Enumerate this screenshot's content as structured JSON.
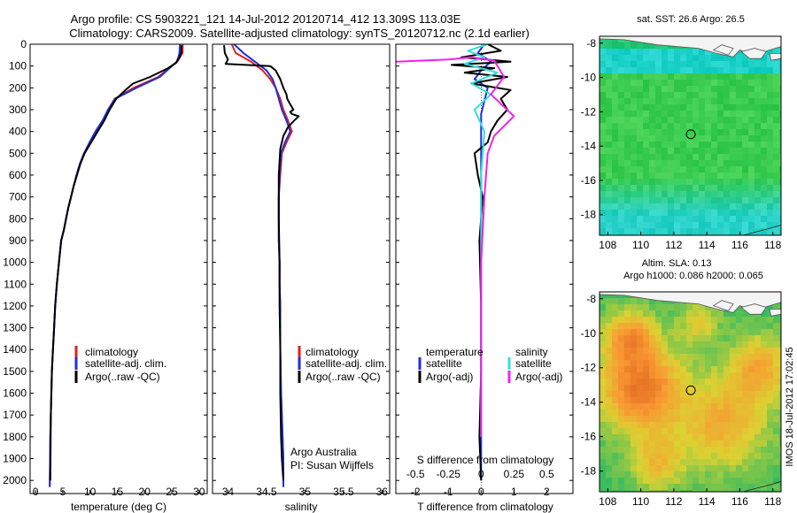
{
  "header": {
    "line1": "Argo profile: CS 5903221_121 14-Jul-2012 20120714_412 13.309S 113.03E",
    "line2": "Climatology: CARS2009. Satellite-adjusted climatology: synTS_20120712.nc (2.1d earlier)"
  },
  "side_stamp": "IMOS 18-Jul-2012 17:02:45",
  "colors": {
    "climatology": "#e02020",
    "satellite": "#1f2fd8",
    "argo": "#000000",
    "sal_satellite": "#33dddd",
    "sal_argo": "#ee22ee"
  },
  "chart_data": [
    {
      "id": "temperature",
      "type": "line",
      "xlabel": "temperature (deg C)",
      "ylabel": "",
      "xlim": [
        -1,
        31.5
      ],
      "ylim": [
        2060,
        0
      ],
      "xticks": [
        0,
        5,
        10,
        15,
        20,
        25,
        30
      ],
      "yticks": [
        0,
        100,
        200,
        300,
        400,
        500,
        600,
        700,
        800,
        900,
        1000,
        1100,
        1200,
        1300,
        1400,
        1500,
        1600,
        1700,
        1800,
        1900,
        2000
      ],
      "legend": [
        "climatology",
        "satellite-adj. clim.",
        "Argo(..raw -QC)"
      ],
      "series": [
        {
          "name": "climatology",
          "color": "#e02020",
          "x": [
            27.0,
            27.0,
            26.5,
            26.0,
            25.0,
            22.5,
            18.0,
            14.5,
            13.3,
            12.5,
            11.2,
            10.0,
            9.0,
            8.2,
            7.6,
            7.0,
            6.5,
            6.0,
            5.6,
            5.2,
            4.7,
            4.3,
            3.9,
            3.6,
            3.4,
            3.2,
            3.0,
            2.9,
            2.8,
            2.7,
            2.6
          ],
          "y": [
            0,
            40,
            60,
            80,
            100,
            150,
            200,
            250,
            300,
            350,
            400,
            450,
            500,
            550,
            600,
            650,
            700,
            750,
            800,
            850,
            900,
            1000,
            1100,
            1200,
            1300,
            1400,
            1500,
            1600,
            1700,
            1800,
            2030
          ]
        },
        {
          "name": "satellite-adj. clim.",
          "color": "#1f2fd8",
          "x": [
            26.5,
            26.4,
            26.2,
            25.9,
            25.0,
            22.8,
            18.5,
            14.6,
            13.3,
            12.3,
            11.0,
            9.9,
            8.9,
            8.1,
            7.5,
            7.0,
            6.5,
            6.0,
            5.6,
            5.2,
            4.7,
            4.3,
            3.9,
            3.6,
            3.4,
            3.2,
            3.0,
            2.9,
            2.8,
            2.7,
            2.6
          ],
          "y": [
            0,
            40,
            60,
            80,
            100,
            150,
            200,
            250,
            300,
            350,
            400,
            450,
            500,
            550,
            600,
            650,
            700,
            750,
            800,
            850,
            900,
            1000,
            1100,
            1200,
            1300,
            1400,
            1500,
            1600,
            1700,
            1800,
            2030
          ]
        },
        {
          "name": "Argo(..raw -QC)",
          "color": "#000000",
          "x": [
            26.8,
            26.7,
            26.4,
            25.8,
            24.3,
            21.0,
            17.9,
            16.5,
            14.8,
            13.6,
            12.6,
            11.4,
            10.2,
            9.0,
            8.2,
            7.6,
            7.0,
            6.5,
            6.0,
            5.6,
            5.2,
            4.7,
            4.3,
            3.9,
            3.6,
            3.4,
            3.2,
            3.0,
            2.9,
            2.8,
            2.7
          ],
          "y": [
            5,
            40,
            60,
            85,
            110,
            150,
            180,
            210,
            250,
            300,
            350,
            400,
            450,
            500,
            550,
            600,
            650,
            700,
            750,
            800,
            850,
            900,
            1000,
            1100,
            1200,
            1300,
            1400,
            1500,
            1600,
            1700,
            2000
          ]
        }
      ]
    },
    {
      "id": "salinity",
      "type": "line",
      "xlabel": "salinity",
      "ylabel": "",
      "xlim": [
        33.8,
        36.1
      ],
      "ylim": [
        2060,
        0
      ],
      "xticks": [
        34,
        34.5,
        35,
        35.5,
        36
      ],
      "legend": [
        "climatology",
        "satellite-adj. clim.",
        "Argo(..raw -QC)"
      ],
      "notes": [
        "Argo Australia",
        "PI: Susan Wijffels"
      ],
      "series": [
        {
          "name": "climatology",
          "color": "#e02020",
          "x": [
            34.05,
            34.1,
            34.3,
            34.45,
            34.55,
            34.62,
            34.68,
            34.72,
            34.78,
            34.83,
            34.76,
            34.7,
            34.68,
            34.66,
            34.66,
            34.66,
            34.67,
            34.67,
            34.68,
            34.68,
            34.69,
            34.7,
            34.71,
            34.72,
            34.72
          ],
          "y": [
            0,
            40,
            80,
            120,
            160,
            200,
            250,
            300,
            350,
            400,
            450,
            500,
            600,
            700,
            800,
            900,
            1000,
            1100,
            1200,
            1400,
            1600,
            1700,
            1800,
            1900,
            2030
          ]
        },
        {
          "name": "satellite-adj. clim.",
          "color": "#1f2fd8",
          "x": [
            34.08,
            34.2,
            34.35,
            34.5,
            34.58,
            34.62,
            34.66,
            34.7,
            34.76,
            34.81,
            34.74,
            34.69,
            34.67,
            34.66,
            34.66,
            34.66,
            34.67,
            34.67,
            34.68,
            34.68,
            34.69,
            34.7,
            34.71,
            34.72,
            34.72
          ],
          "y": [
            0,
            40,
            80,
            120,
            160,
            200,
            250,
            300,
            350,
            400,
            450,
            500,
            600,
            700,
            800,
            900,
            1000,
            1100,
            1200,
            1400,
            1600,
            1700,
            1800,
            1900,
            2030
          ]
        },
        {
          "name": "Argo(..raw -QC)",
          "color": "#000000",
          "x": [
            33.95,
            33.96,
            34.0,
            33.97,
            34.55,
            34.62,
            34.68,
            34.72,
            34.76,
            34.77,
            34.8,
            34.85,
            34.81,
            34.83,
            34.92,
            34.86,
            34.78,
            34.72,
            34.68,
            34.66,
            34.66,
            34.67,
            34.67,
            34.68,
            34.68,
            34.69,
            34.7,
            34.72
          ],
          "y": [
            5,
            40,
            70,
            90,
            100,
            120,
            160,
            200,
            230,
            250,
            270,
            300,
            310,
            320,
            330,
            350,
            380,
            420,
            480,
            600,
            800,
            1000,
            1200,
            1400,
            1600,
            1800,
            1900,
            2000
          ]
        }
      ]
    },
    {
      "id": "difference",
      "type": "line",
      "xlabel": "T difference from climatology",
      "xlabel_top": "S difference from climatology",
      "xlim": [
        -2.6,
        2.8
      ],
      "ylim": [
        2060,
        0
      ],
      "xticks_T": [
        -2,
        -1,
        0,
        1,
        2
      ],
      "xticks_S": [
        -0.5,
        -0.25,
        0,
        0.25,
        0.5
      ],
      "legend_headers": [
        "temperature",
        "salinity"
      ],
      "legend": [
        "satellite",
        "Argo(-adj)",
        "satellite",
        "Argo(-adj)"
      ],
      "series": [
        {
          "name": "satellite",
          "group": "temperature",
          "color": "#1f2fd8",
          "x": [
            0.1,
            -0.1,
            0.3,
            0.0,
            -0.2,
            0.2,
            0.1,
            0.0,
            0.0,
            0.0,
            0.0,
            0.0
          ],
          "y": [
            0,
            40,
            80,
            120,
            160,
            200,
            260,
            320,
            400,
            600,
            1000,
            2000
          ]
        },
        {
          "name": "Argo(-adj)",
          "group": "temperature",
          "color": "#000000",
          "x": [
            0.2,
            0.6,
            -0.6,
            0.9,
            -0.9,
            0.4,
            -0.5,
            0.8,
            -0.3,
            0.9,
            0.6,
            0.8,
            0.5,
            0.3,
            0.2,
            -0.2,
            -0.1,
            0.05,
            -0.05,
            0.0,
            0.0,
            -0.05,
            0.0
          ],
          "y": [
            0,
            30,
            60,
            80,
            95,
            110,
            130,
            150,
            180,
            210,
            250,
            300,
            350,
            400,
            450,
            500,
            600,
            700,
            900,
            1200,
            1500,
            1800,
            2000
          ]
        },
        {
          "name": "satellite",
          "group": "salinity",
          "color": "#33dddd",
          "x": [
            0.2,
            -0.4,
            0.1,
            -0.5,
            0.5,
            -0.3,
            0.3,
            -0.2,
            0.1,
            0.0,
            0.0,
            0.0
          ],
          "y": [
            0,
            30,
            60,
            90,
            130,
            180,
            230,
            300,
            400,
            600,
            1000,
            1800
          ]
        },
        {
          "name": "Argo(-adj)",
          "group": "salinity",
          "color": "#ee22ee",
          "x": [
            -2.6,
            -1.0,
            -0.3,
            0.4,
            0.7,
            0.3,
            1.0,
            0.4,
            0.2,
            0.1,
            0.0,
            0.0
          ],
          "y": [
            80,
            70,
            60,
            75,
            150,
            230,
            330,
            420,
            500,
            700,
            1000,
            1800
          ]
        }
      ]
    },
    {
      "id": "sst_map",
      "type": "heatmap",
      "title": "sat. SST: 26.6  Argo: 26.5",
      "xlim": [
        107.5,
        118.5
      ],
      "ylim": [
        -19.2,
        -7.6
      ],
      "xticks": [
        108,
        110,
        112,
        114,
        116,
        118
      ],
      "yticks": [
        -8,
        -10,
        -12,
        -14,
        -16,
        -18
      ],
      "marker": {
        "lon": 113.03,
        "lat": -13.309
      }
    },
    {
      "id": "sla_map",
      "type": "heatmap",
      "title": "Altim. SLA: 0.13",
      "subtitle": "Argo h1000: 0.086 h2000: 0.065",
      "xlim": [
        107.5,
        118.5
      ],
      "ylim": [
        -19.2,
        -7.6
      ],
      "xticks": [
        108,
        110,
        112,
        114,
        116,
        118
      ],
      "yticks": [
        -8,
        -10,
        -12,
        -14,
        -16,
        -18
      ],
      "marker": {
        "lon": 113.03,
        "lat": -13.309
      }
    }
  ]
}
